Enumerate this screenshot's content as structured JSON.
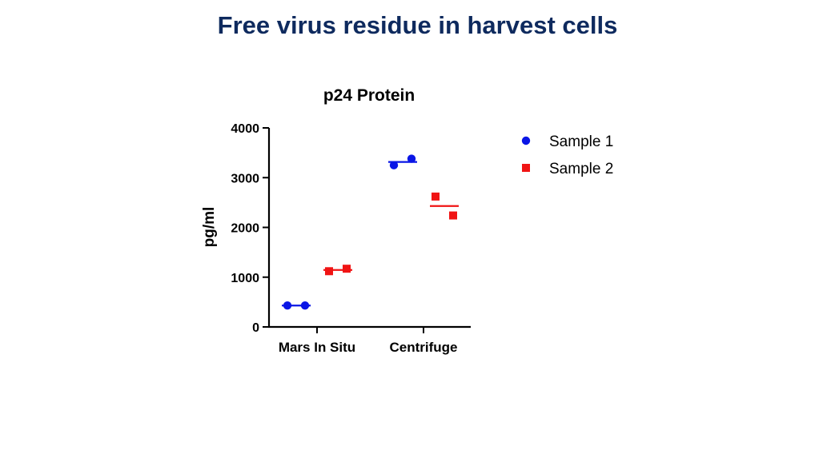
{
  "slide": {
    "title": "Free virus residue in harvest cells"
  },
  "chart_data": {
    "type": "scatter",
    "title": "p24 Protein",
    "xlabel": "",
    "ylabel": "pg/ml",
    "ylim": [
      0,
      4000
    ],
    "yticks": [
      0,
      1000,
      2000,
      3000,
      4000
    ],
    "categories": [
      "Mars In Situ",
      "Centrifuge"
    ],
    "grid": false,
    "legend_position": "right",
    "series": [
      {
        "name": "Sample 1",
        "marker": "circle",
        "color": "#0a16e6",
        "points": [
          [
            430,
            430
          ],
          [
            3250,
            3380
          ]
        ],
        "means": [
          430,
          3315
        ]
      },
      {
        "name": "Sample 2",
        "marker": "square",
        "color": "#f01414",
        "points": [
          [
            1120,
            1170
          ],
          [
            2620,
            2240
          ]
        ],
        "means": [
          1145,
          2430
        ]
      }
    ]
  }
}
